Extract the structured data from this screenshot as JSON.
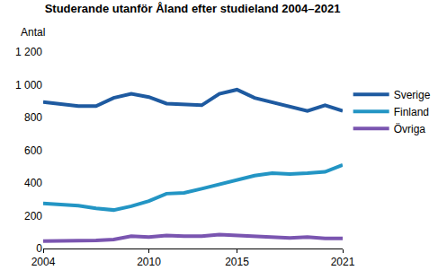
{
  "chart_data": {
    "type": "line",
    "title": "Studerande utanför Åland efter studieland 2004–2021",
    "y_label": "Antal",
    "x": [
      2004,
      2005,
      2006,
      2007,
      2008,
      2009,
      2010,
      2011,
      2012,
      2013,
      2014,
      2015,
      2016,
      2017,
      2018,
      2019,
      2020,
      2021
    ],
    "series": [
      {
        "name": "Sverige",
        "color": "#1e5aa0",
        "values": [
          895,
          880,
          870,
          870,
          920,
          945,
          925,
          885,
          880,
          875,
          945,
          970,
          920,
          895,
          870,
          840,
          875,
          840
        ]
      },
      {
        "name": "Finland",
        "color": "#2395c4",
        "values": [
          275,
          270,
          262,
          245,
          235,
          258,
          290,
          335,
          340,
          365,
          390,
          420,
          445,
          460,
          455,
          460,
          468,
          510
        ]
      },
      {
        "name": "Övriga",
        "color": "#7a55b0",
        "values": [
          45,
          45,
          45,
          50,
          55,
          75,
          70,
          80,
          75,
          75,
          85,
          80,
          80,
          70,
          65,
          70,
          62,
          62
        ]
      }
    ],
    "xlim": [
      2004,
      2021
    ],
    "xticks": [
      2004,
      2010,
      2015,
      2021
    ],
    "ylim": [
      0,
      1200
    ],
    "yticks": [
      0,
      200,
      400,
      600,
      800,
      {
        "value": 1000,
        "label": "1 000"
      },
      {
        "value": 1200,
        "label": "1 200"
      }
    ],
    "grid": false,
    "legend": "right"
  }
}
